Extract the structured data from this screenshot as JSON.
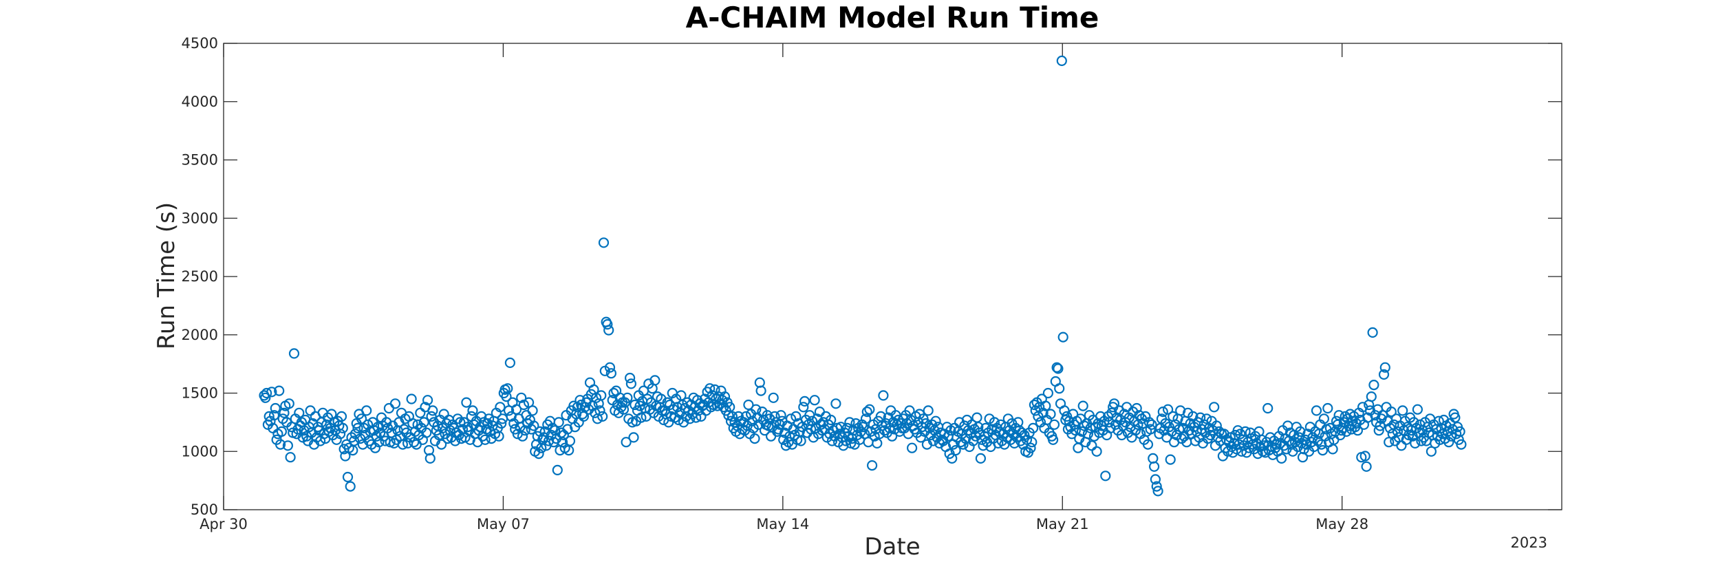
{
  "chart_data": {
    "type": "scatter",
    "title": "A-CHAIM Model Run Time",
    "xlabel": "Date",
    "ylabel": "Run Time (s)",
    "x_secondary_label": "2023",
    "x_range": [
      "2023-04-30",
      "2023-06-02T12:00"
    ],
    "ylim": [
      500,
      4500
    ],
    "yticks": [
      500,
      1000,
      1500,
      2000,
      2500,
      3000,
      3500,
      4000,
      4500
    ],
    "xticks": [
      {
        "date": "2023-04-30",
        "label": "Apr 30"
      },
      {
        "date": "2023-05-07",
        "label": "May 07"
      },
      {
        "date": "2023-05-14",
        "label": "May 14"
      },
      {
        "date": "2023-05-21",
        "label": "May 21"
      },
      {
        "date": "2023-05-28",
        "label": "May 28"
      }
    ],
    "grid": false,
    "marker": "circle",
    "color": "#0072BD",
    "start": "2023-05-01",
    "samples_per_day": 32,
    "points": [
      {
        "d": 1,
        "v": [
          1480,
          1460,
          1500,
          1230,
          1300,
          1260,
          1510,
          1200,
          1310,
          1370,
          1100,
          1150,
          1520,
          1060,
          1170,
          1280,
          1330,
          1390,
          1250,
          1050,
          1410,
          950,
          1210,
          1160,
          1840,
          1280,
          1150,
          1190,
          1330,
          1220,
          1250,
          1120
        ]
      },
      {
        "d": 2,
        "v": [
          1180,
          1270,
          1130,
          1090,
          1210,
          1350,
          1160,
          1240,
          1060,
          1300,
          1120,
          1210,
          1180,
          1090,
          1250,
          1330,
          1150,
          1110,
          1230,
          1290,
          1170,
          1200,
          1320,
          1140,
          1250,
          1180,
          1100,
          1260,
          1220,
          1150,
          1300,
          1200
        ]
      },
      {
        "d": 3,
        "v": [
          1020,
          960,
          1060,
          780,
          1030,
          700,
          1120,
          1010,
          1090,
          1150,
          1240,
          1200,
          1320,
          1110,
          1280,
          1060,
          1200,
          1140,
          1350,
          1230,
          1090,
          1170,
          1060,
          1250,
          1180,
          1030,
          1130,
          1210,
          1080,
          1160,
          1290,
          1220
        ]
      },
      {
        "d": 4,
        "v": [
          1130,
          1090,
          1250,
          1200,
          1370,
          1080,
          1160,
          1220,
          1070,
          1410,
          1100,
          1180,
          1250,
          1130,
          1330,
          1060,
          1190,
          1280,
          1160,
          1070,
          1300,
          1120,
          1450,
          1240,
          1080,
          1170,
          1060,
          1230,
          1140,
          1330,
          1200,
          1100
        ]
      },
      {
        "d": 5,
        "v": [
          1250,
          1380,
          1160,
          1440,
          1010,
          940,
          1300,
          1350,
          1250,
          1090,
          1180,
          1220,
          1140,
          1270,
          1060,
          1200,
          1320,
          1150,
          1240,
          1110,
          1270,
          1180,
          1120,
          1230,
          1200,
          1090,
          1160,
          1280,
          1140,
          1250,
          1110,
          1190
        ]
      },
      {
        "d": 6,
        "v": [
          1250,
          1120,
          1420,
          1210,
          1180,
          1100,
          1300,
          1350,
          1230,
          1150,
          1260,
          1080,
          1180,
          1210,
          1300,
          1130,
          1250,
          1100,
          1190,
          1240,
          1280,
          1170,
          1110,
          1220,
          1260,
          1150,
          1330,
          1200,
          1130,
          1380,
          1240,
          1280
        ]
      },
      {
        "d": 7,
        "v": [
          1500,
          1530,
          1470,
          1540,
          1350,
          1760,
          1300,
          1420,
          1240,
          1190,
          1360,
          1150,
          1280,
          1210,
          1460,
          1130,
          1400,
          1180,
          1310,
          1240,
          1420,
          1270,
          1190,
          1350,
          1220,
          1000,
          1060,
          1130,
          980,
          1170,
          1030,
          1100
        ]
      },
      {
        "d": 8,
        "v": [
          1120,
          1170,
          1050,
          1230,
          1090,
          1260,
          1140,
          1200,
          1080,
          1180,
          1110,
          840,
          1250,
          1010,
          1160,
          1080,
          1140,
          1030,
          1310,
          1190,
          1010,
          1090,
          1350,
          1280,
          1390,
          1210,
          1320,
          1380,
          1250,
          1440,
          1400,
          1320
        ]
      },
      {
        "d": 9,
        "v": [
          1300,
          1380,
          1420,
          1450,
          1360,
          1590,
          1490,
          1390,
          1530,
          1330,
          1460,
          1280,
          1410,
          1350,
          1480,
          1300,
          2790,
          1690,
          2110,
          2090,
          2040,
          1720,
          1670,
          1440,
          1500,
          1350,
          1520,
          1400,
          1330,
          1460,
          1380,
          1420
        ]
      },
      {
        "d": 10,
        "v": [
          1360,
          1420,
          1080,
          1460,
          1280,
          1630,
          1580,
          1250,
          1120,
          1400,
          1260,
          1350,
          1480,
          1390,
          1290,
          1430,
          1520,
          1370,
          1300,
          1450,
          1580,
          1360,
          1420,
          1540,
          1330,
          1610,
          1390,
          1470,
          1300,
          1380,
          1450,
          1350
        ]
      },
      {
        "d": 11,
        "v": [
          1270,
          1350,
          1320,
          1420,
          1250,
          1400,
          1300,
          1500,
          1360,
          1290,
          1450,
          1380,
          1270,
          1330,
          1480,
          1400,
          1250,
          1370,
          1300,
          1420,
          1350,
          1280,
          1400,
          1320,
          1460,
          1380,
          1290,
          1440,
          1350,
          1410,
          1300,
          1390
        ]
      },
      {
        "d": 12,
        "v": [
          1400,
          1450,
          1350,
          1510,
          1420,
          1540,
          1380,
          1480,
          1400,
          1530,
          1450,
          1390,
          1470,
          1410,
          1520,
          1440,
          1380,
          1470,
          1350,
          1420,
          1310,
          1380,
          1260,
          1300,
          1200,
          1250,
          1170,
          1220,
          1300,
          1150,
          1260,
          1190
        ]
      },
      {
        "d": 13,
        "v": [
          1250,
          1180,
          1300,
          1220,
          1400,
          1150,
          1320,
          1260,
          1200,
          1110,
          1360,
          1290,
          1230,
          1590,
          1520,
          1340,
          1270,
          1180,
          1230,
          1310,
          1220,
          1280,
          1130,
          1210,
          1460,
          1300,
          1250,
          1170,
          1190,
          1230,
          1310,
          1260
        ]
      },
      {
        "d": 14,
        "v": [
          1100,
          1160,
          1050,
          1220,
          1080,
          1130,
          1280,
          1060,
          1190,
          1140,
          1300,
          1100,
          1240,
          1170,
          1090,
          1210,
          1380,
          1430,
          1270,
          1160,
          1230,
          1310,
          1190,
          1260,
          1120,
          1440,
          1200,
          1280,
          1150,
          1340,
          1230,
          1180
        ]
      },
      {
        "d": 15,
        "v": [
          1250,
          1190,
          1300,
          1120,
          1230,
          1150,
          1270,
          1090,
          1180,
          1130,
          1410,
          1200,
          1080,
          1150,
          1210,
          1120,
          1050,
          1160,
          1090,
          1200,
          1130,
          1250,
          1070,
          1110,
          1180,
          1060,
          1240,
          1140,
          1200,
          1100,
          1170,
          1230
        ]
      },
      {
        "d": 16,
        "v": [
          1210,
          1150,
          1280,
          1340,
          1080,
          1360,
          1170,
          880,
          1230,
          1130,
          1190,
          1070,
          1260,
          1150,
          1300,
          1220,
          1480,
          1180,
          1240,
          1160,
          1290,
          1200,
          1350,
          1130,
          1250,
          1190,
          1310,
          1230,
          1270,
          1170,
          1240,
          1200
        ]
      },
      {
        "d": 17,
        "v": [
          1280,
          1200,
          1310,
          1240,
          1150,
          1350,
          1270,
          1030,
          1220,
          1190,
          1300,
          1160,
          1250,
          1320,
          1120,
          1210,
          1280,
          1170,
          1240,
          1060,
          1350,
          1200,
          1140,
          1230,
          1090,
          1180,
          1260,
          1120,
          1210,
          1070,
          1160,
          1100
        ]
      },
      {
        "d": 18,
        "v": [
          1090,
          1150,
          1040,
          1210,
          1130,
          980,
          1180,
          940,
          1060,
          1200,
          1010,
          1120,
          1170,
          1250,
          1080,
          1150,
          1060,
          1220,
          1110,
          1270,
          1180,
          1040,
          1150,
          1230,
          1090,
          1190,
          1130,
          1290,
          1210,
          1160,
          940,
          1100
        ]
      },
      {
        "d": 19,
        "v": [
          1050,
          1130,
          1200,
          1080,
          1160,
          1280,
          1040,
          1190,
          1110,
          1250,
          1140,
          1200,
          1070,
          1170,
          1230,
          1090,
          1150,
          1060,
          1210,
          1120,
          1280,
          1180,
          1100,
          1240,
          1150,
          1070,
          1200,
          1120,
          1250,
          1180,
          1090,
          1160
        ]
      },
      {
        "d": 20,
        "v": [
          1060,
          1140,
          1000,
          1100,
          990,
          1160,
          1030,
          1080,
          1200,
          1400,
          1350,
          1420,
          1300,
          1380,
          1250,
          1450,
          1330,
          1200,
          1390,
          1270,
          1500,
          1160,
          1320,
          1130,
          1100,
          1230,
          1600,
          1720,
          1710,
          1540,
          1410,
          4350
        ]
      },
      {
        "d": 21,
        "v": [
          1980,
          1350,
          1270,
          1300,
          1190,
          1260,
          1210,
          1150,
          1320,
          1230,
          1180,
          1260,
          1030,
          1110,
          1280,
          1170,
          1390,
          1220,
          1080,
          1240,
          1150,
          1310,
          1200,
          1050,
          1270,
          1130,
          1210,
          1000,
          1240,
          1160,
          1300,
          1220
        ]
      },
      {
        "d": 22,
        "v": [
          1180,
          1260,
          790,
          1140,
          1300,
          1250,
          1200,
          1330,
          1380,
          1410,
          1230,
          1290,
          1180,
          1350,
          1270,
          1140,
          1220,
          1320,
          1250,
          1380,
          1160,
          1290,
          1210,
          1120,
          1340,
          1260,
          1180,
          1370,
          1230,
          1310,
          1150,
          1280
        ]
      },
      {
        "d": 23,
        "v": [
          1240,
          1100,
          1300,
          1170,
          1060,
          1250,
          1190,
          1230,
          940,
          870,
          760,
          700,
          660,
          1150,
          1200,
          1280,
          1340,
          1180,
          1240,
          1120,
          1360,
          1210,
          930,
          1170,
          1300,
          1080,
          1230,
          1140,
          1280,
          1190,
          1350,
          1110
        ]
      },
      {
        "d": 24,
        "v": [
          1200,
          1130,
          1260,
          1080,
          1330,
          1180,
          1240,
          1150,
          1300,
          1210,
          1090,
          1170,
          1250,
          1120,
          1290,
          1190,
          1070,
          1230,
          1160,
          1280,
          1110,
          1200,
          1140,
          1260,
          1180,
          1380,
          1050,
          1220,
          1120,
          1170,
          1090,
          1150
        ]
      },
      {
        "d": 25,
        "v": [
          960,
          1150,
          1030,
          1100,
          1000,
          1080,
          1120,
          1040,
          990,
          1070,
          1140,
          1020,
          1180,
          1060,
          1150,
          1000,
          1100,
          1050,
          1170,
          990,
          1080,
          1030,
          1160,
          1110,
          1060,
          1020,
          1130,
          1070,
          980,
          1170,
          1040,
          1100
        ]
      },
      {
        "d": 26,
        "v": [
          1000,
          1050,
          990,
          1080,
          1370,
          1010,
          1120,
          1040,
          970,
          1090,
          1030,
          1060,
          1000,
          1130,
          1070,
          940,
          1180,
          1050,
          1110,
          1020,
          1220,
          1090,
          1160,
          1060,
          1000,
          1140,
          1080,
          1210,
          1040,
          1120,
          1170,
          1070
        ]
      },
      {
        "d": 27,
        "v": [
          950,
          1020,
          1100,
          1060,
          1150,
          1000,
          1210,
          1080,
          1120,
          1040,
          1170,
          1350,
          1090,
          1150,
          1230,
          1060,
          1010,
          1280,
          1130,
          1190,
          1370,
          1080,
          1200,
          1150,
          1020,
          1100,
          1170,
          1260,
          1230,
          1310,
          1140,
          1180
        ]
      },
      {
        "d": 28,
        "v": [
          1200,
          1250,
          1300,
          1170,
          1280,
          1220,
          1320,
          1190,
          1260,
          1300,
          1210,
          1240,
          1180,
          1330,
          1270,
          950,
          1380,
          1230,
          960,
          870,
          1290,
          1400,
          1350,
          1470,
          2020,
          1570,
          1310,
          1250,
          1360,
          1180,
          1220,
          1280
        ]
      },
      {
        "d": 29,
        "v": [
          1310,
          1660,
          1720,
          1380,
          1260,
          1080,
          1200,
          1340,
          1150,
          1230,
          1090,
          1280,
          1170,
          1120,
          1220,
          1050,
          1350,
          1180,
          1260,
          1100,
          1210,
          1140,
          1290,
          1180,
          1130,
          1250,
          1070,
          1200,
          1360,
          1160,
          1230,
          1090
        ]
      },
      {
        "d": 30,
        "v": [
          1180,
          1120,
          1250,
          1090,
          1210,
          1160,
          1280,
          1000,
          1140,
          1230,
          1070,
          1190,
          1130,
          1260,
          1100,
          1200,
          1150,
          1270,
          1110,
          1220,
          1170,
          1080,
          1240,
          1130,
          1190,
          1320,
          1290,
          1150,
          1210,
          1100,
          1170,
          1060
        ]
      }
    ]
  }
}
